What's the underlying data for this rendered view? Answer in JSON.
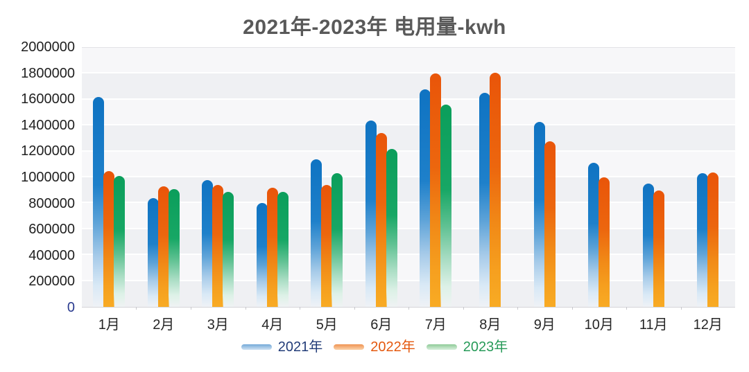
{
  "title": "2021年-2023年 电用量-kwh",
  "chart_data": {
    "type": "bar",
    "title": "2021年-2023年 电用量-kwh",
    "categories": [
      "1月",
      "2月",
      "3月",
      "4月",
      "5月",
      "6月",
      "7月",
      "8月",
      "9月",
      "10月",
      "11月",
      "12月"
    ],
    "series": [
      {
        "name": "2021年",
        "color": "#1478c6",
        "values": [
          1620000,
          840000,
          980000,
          800000,
          1140000,
          1440000,
          1680000,
          1650000,
          1430000,
          1110000,
          950000,
          1030000
        ]
      },
      {
        "name": "2022年",
        "color": "#ec5a0f",
        "values": [
          1050000,
          930000,
          940000,
          920000,
          940000,
          1340000,
          1800000,
          1810000,
          1280000,
          1000000,
          900000,
          1040000
        ]
      },
      {
        "name": "2023年",
        "color": "#12a263",
        "values": [
          1010000,
          910000,
          890000,
          890000,
          1030000,
          1220000,
          1560000,
          null,
          null,
          null,
          null,
          null
        ]
      }
    ],
    "xlabel": "",
    "ylabel": "",
    "ylim": [
      0,
      2000000
    ],
    "ytick_step": 200000,
    "y_tick_labels": [
      "2000000",
      "1800000",
      "1600000",
      "1400000",
      "1200000",
      "1000000",
      "800000",
      "600000",
      "400000",
      "200000",
      "0"
    ],
    "grid": true,
    "legend_position": "bottom"
  },
  "legend": {
    "items": [
      {
        "label": "2021年",
        "text_color": "#223c78"
      },
      {
        "label": "2022年",
        "text_color": "#e4580e"
      },
      {
        "label": "2023年",
        "text_color": "#269a58"
      }
    ]
  },
  "colors": {
    "title_text": "#595959",
    "axis_text": "#1f1f1f",
    "zero_tick_text": "#2a3b8f",
    "series_2021": "#1478c6",
    "series_2022": "#ec5a0f",
    "series_2023": "#12a263",
    "plot_band_light": "#f7f7f9",
    "plot_band_dark": "#eff0f3"
  }
}
